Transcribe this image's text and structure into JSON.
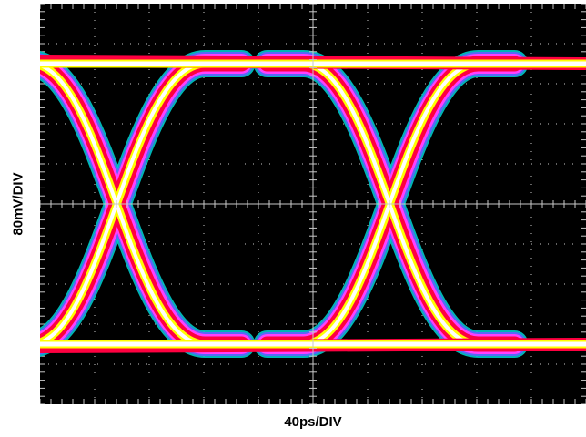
{
  "chart_data": {
    "type": "scatter",
    "subtype": "eye-diagram",
    "title": "",
    "xlabel": "40ps/DIV",
    "ylabel": "80mV/DIV",
    "grid": true,
    "x_divisions": 10,
    "y_divisions": 10,
    "xlim": [
      0,
      400
    ],
    "ylim": [
      -400,
      400
    ],
    "x_unit": "ps",
    "y_unit": "mV",
    "bit_period_ps": 200,
    "eyes_shown": 2,
    "crossing_times_ps": [
      57,
      257
    ],
    "levels_mv": [
      {
        "name": "logic-high",
        "value": 280
      },
      {
        "name": "logic-low",
        "value": -280
      }
    ],
    "colors": {
      "background": "#000000",
      "grid": "#c8c8c8",
      "density_scale": [
        "#00c8c8",
        "#6060ff",
        "#ff40ff",
        "#ff0040",
        "#ffff00",
        "#ffffff"
      ]
    }
  }
}
